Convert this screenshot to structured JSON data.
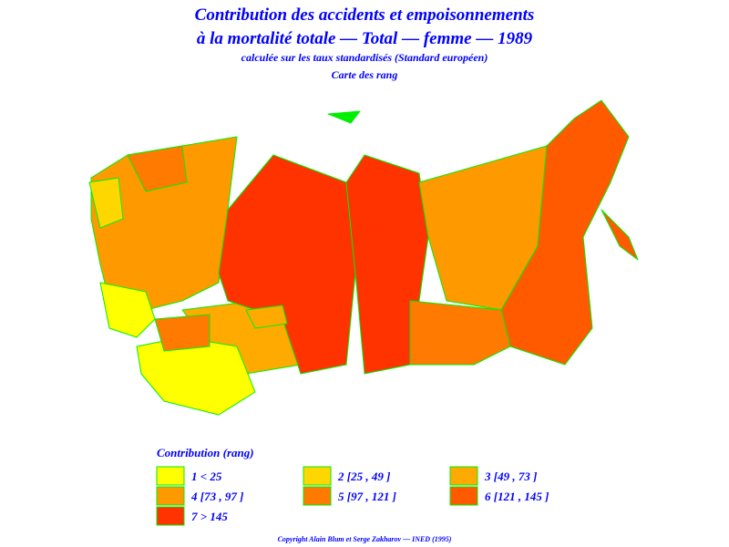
{
  "header": {
    "title_lines": [
      "Contribution des accidents et empoisonnements",
      "à la mortalité totale — Total — femme — 1989"
    ],
    "subtitle": "calculée sur les taux standardisés (Standard européen)",
    "caption": "Carte des rang"
  },
  "legend": {
    "title": "Contribution (rang)",
    "items": [
      {
        "label": "1  <  25",
        "color": "#ffff00"
      },
      {
        "label": "2  [25 ,  49 ]",
        "color": "#ffd700"
      },
      {
        "label": "3  [49 ,  73 ]",
        "color": "#ffaa00"
      },
      {
        "label": "4  [73 ,  97 ]",
        "color": "#ff9900"
      },
      {
        "label": "5  [97 ,  121 ]",
        "color": "#ff7a00"
      },
      {
        "label": "6  [121 ,  145 ]",
        "color": "#ff5a00"
      },
      {
        "label": "7  >  145",
        "color": "#ff3300"
      }
    ]
  },
  "footer": {
    "copyright": "Copyright Alain Blum et Serge Zakharov — INED (1995)"
  }
}
